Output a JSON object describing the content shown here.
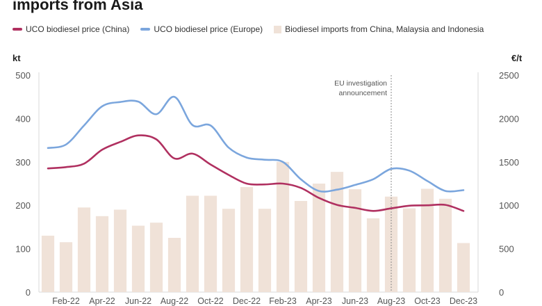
{
  "title": "imports from Asia",
  "legend": [
    {
      "label": "UCO biodiesel price (China)",
      "color": "#b03060",
      "kind": "line"
    },
    {
      "label": "UCO biodiesel price (Europe)",
      "color": "#7ba6dd",
      "kind": "line"
    },
    {
      "label": "Biodiesel imports from China, Malaysia and Indonesia",
      "color": "#f0e2d8",
      "kind": "bar"
    }
  ],
  "chart_data": {
    "type": "bar",
    "left_axis_unit": "kt",
    "right_axis_unit": "€/t",
    "left_ylim": [
      0,
      500
    ],
    "right_ylim": [
      0,
      2500
    ],
    "left_ticks": [
      "0",
      "100",
      "200",
      "300",
      "400",
      "500"
    ],
    "right_ticks": [
      "0",
      "500",
      "1000",
      "1500",
      "2000",
      "2500"
    ],
    "x_tick_labels": [
      "Feb-22",
      "Apr-22",
      "Jun-22",
      "Aug-22",
      "Oct-22",
      "Dec-22",
      "Feb-23",
      "Apr-23",
      "Jun-23",
      "Aug-23",
      "Oct-23",
      "Dec-23"
    ],
    "categories": [
      "Jan-22",
      "Feb-22",
      "Mar-22",
      "Apr-22",
      "May-22",
      "Jun-22",
      "Jul-22",
      "Aug-22",
      "Sep-22",
      "Oct-22",
      "Nov-22",
      "Dec-22",
      "Jan-23",
      "Feb-23",
      "Mar-23",
      "Apr-23",
      "May-23",
      "Jun-23",
      "Jul-23",
      "Aug-23",
      "Sep-23",
      "Oct-23",
      "Nov-23",
      "Dec-23"
    ],
    "series": [
      {
        "name": "Biodiesel imports from China, Malaysia and Indonesia",
        "axis": "left",
        "kind": "bar",
        "color": "#f0e2d8",
        "values": [
          130,
          115,
          195,
          175,
          190,
          153,
          160,
          125,
          222,
          222,
          192,
          242,
          192,
          300,
          210,
          250,
          277,
          237,
          170,
          220,
          193,
          238,
          215,
          113
        ]
      },
      {
        "name": "UCO biodiesel price (China)",
        "axis": "right",
        "kind": "line",
        "color": "#b03060",
        "values": [
          1425,
          1440,
          1480,
          1640,
          1730,
          1805,
          1760,
          1540,
          1595,
          1470,
          1350,
          1250,
          1240,
          1250,
          1200,
          1085,
          1005,
          970,
          935,
          965,
          995,
          1000,
          1005,
          935
        ]
      },
      {
        "name": "UCO biodiesel price (Europe)",
        "axis": "right",
        "kind": "line",
        "color": "#7ba6dd",
        "values": [
          1660,
          1700,
          1920,
          2140,
          2190,
          2195,
          2050,
          2250,
          1925,
          1920,
          1665,
          1550,
          1525,
          1500,
          1300,
          1165,
          1180,
          1235,
          1300,
          1420,
          1400,
          1280,
          1165,
          1175
        ]
      }
    ],
    "annotation": {
      "lines": [
        "EU investigation",
        "announcement"
      ],
      "at_category": "Aug-23"
    },
    "grid": false
  }
}
